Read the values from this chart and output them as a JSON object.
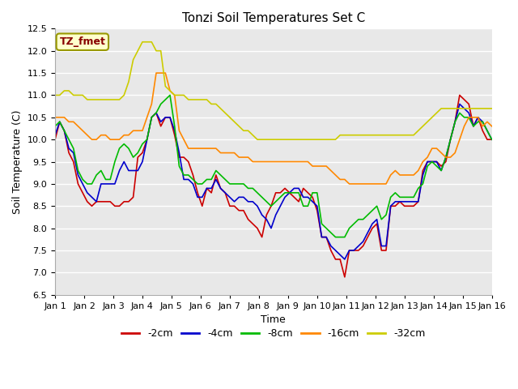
{
  "title": "Tonzi Soil Temperatures Set C",
  "xlabel": "Time",
  "ylabel": "Soil Temperature (C)",
  "annotation": "TZ_fmet",
  "ylim": [
    6.5,
    12.5
  ],
  "series": {
    "-2cm": {
      "color": "#cc0000",
      "linewidth": 1.2,
      "values": [
        10.0,
        10.4,
        10.2,
        9.7,
        9.5,
        9.0,
        8.8,
        8.6,
        8.5,
        8.6,
        8.6,
        8.6,
        8.6,
        8.5,
        8.5,
        8.6,
        8.6,
        8.7,
        9.6,
        9.7,
        10.0,
        10.5,
        10.6,
        10.3,
        10.5,
        10.5,
        10.1,
        9.6,
        9.6,
        9.5,
        9.2,
        8.8,
        8.5,
        8.9,
        8.8,
        9.2,
        8.9,
        8.8,
        8.5,
        8.5,
        8.4,
        8.4,
        8.2,
        8.1,
        8.0,
        7.8,
        8.3,
        8.5,
        8.8,
        8.8,
        8.9,
        8.8,
        8.7,
        8.6,
        8.9,
        8.8,
        8.7,
        8.4,
        7.8,
        7.8,
        7.5,
        7.3,
        7.3,
        6.9,
        7.5,
        7.5,
        7.5,
        7.6,
        7.8,
        8.0,
        8.1,
        7.5,
        7.5,
        8.5,
        8.5,
        8.6,
        8.5,
        8.5,
        8.5,
        8.6,
        9.3,
        9.5,
        9.5,
        9.5,
        9.4,
        9.5,
        10.0,
        10.4,
        11.0,
        10.9,
        10.8,
        10.3,
        10.5,
        10.2,
        10.0,
        10.0
      ]
    },
    "-4cm": {
      "color": "#0000cc",
      "linewidth": 1.2,
      "values": [
        10.1,
        10.4,
        10.2,
        9.8,
        9.7,
        9.2,
        9.0,
        8.8,
        8.7,
        8.6,
        9.0,
        9.0,
        9.0,
        9.0,
        9.3,
        9.5,
        9.3,
        9.3,
        9.3,
        9.5,
        10.0,
        10.5,
        10.6,
        10.4,
        10.5,
        10.5,
        10.2,
        9.7,
        9.1,
        9.1,
        9.0,
        8.7,
        8.7,
        8.9,
        8.9,
        9.1,
        8.9,
        8.8,
        8.7,
        8.6,
        8.7,
        8.7,
        8.6,
        8.6,
        8.5,
        8.3,
        8.2,
        8.0,
        8.3,
        8.5,
        8.7,
        8.8,
        8.9,
        8.9,
        8.7,
        8.7,
        8.6,
        8.5,
        7.8,
        7.8,
        7.6,
        7.5,
        7.4,
        7.3,
        7.5,
        7.5,
        7.6,
        7.7,
        7.9,
        8.1,
        8.2,
        7.6,
        7.6,
        8.5,
        8.6,
        8.6,
        8.6,
        8.6,
        8.6,
        8.6,
        9.2,
        9.5,
        9.5,
        9.5,
        9.3,
        9.6,
        10.0,
        10.4,
        10.8,
        10.7,
        10.6,
        10.3,
        10.5,
        10.4,
        10.2,
        10.0
      ]
    },
    "-8cm": {
      "color": "#00bb00",
      "linewidth": 1.2,
      "values": [
        10.3,
        10.4,
        10.2,
        10.0,
        9.8,
        9.3,
        9.1,
        9.0,
        9.0,
        9.2,
        9.3,
        9.1,
        9.1,
        9.5,
        9.8,
        9.9,
        9.8,
        9.6,
        9.7,
        9.9,
        10.0,
        10.5,
        10.6,
        10.8,
        10.9,
        11.0,
        10.3,
        9.4,
        9.2,
        9.2,
        9.1,
        9.0,
        9.0,
        9.1,
        9.1,
        9.3,
        9.2,
        9.1,
        9.0,
        9.0,
        9.0,
        9.0,
        8.9,
        8.9,
        8.8,
        8.7,
        8.6,
        8.5,
        8.6,
        8.7,
        8.8,
        8.8,
        8.8,
        8.8,
        8.5,
        8.5,
        8.8,
        8.8,
        8.1,
        8.0,
        7.9,
        7.8,
        7.8,
        7.8,
        8.0,
        8.1,
        8.2,
        8.2,
        8.3,
        8.4,
        8.5,
        8.2,
        8.3,
        8.7,
        8.8,
        8.7,
        8.7,
        8.7,
        8.7,
        8.9,
        9.0,
        9.4,
        9.5,
        9.4,
        9.3,
        9.6,
        10.0,
        10.4,
        10.6,
        10.5,
        10.5,
        10.3,
        10.4,
        10.4,
        10.2,
        10.0
      ]
    },
    "-16cm": {
      "color": "#ff8800",
      "linewidth": 1.2,
      "values": [
        10.5,
        10.5,
        10.5,
        10.4,
        10.4,
        10.3,
        10.2,
        10.1,
        10.0,
        10.0,
        10.1,
        10.1,
        10.0,
        10.0,
        10.0,
        10.1,
        10.1,
        10.2,
        10.2,
        10.2,
        10.5,
        10.8,
        11.5,
        11.5,
        11.5,
        11.1,
        11.0,
        10.2,
        10.0,
        9.8,
        9.8,
        9.8,
        9.8,
        9.8,
        9.8,
        9.8,
        9.7,
        9.7,
        9.7,
        9.7,
        9.6,
        9.6,
        9.6,
        9.5,
        9.5,
        9.5,
        9.5,
        9.5,
        9.5,
        9.5,
        9.5,
        9.5,
        9.5,
        9.5,
        9.5,
        9.5,
        9.4,
        9.4,
        9.4,
        9.4,
        9.3,
        9.2,
        9.1,
        9.1,
        9.0,
        9.0,
        9.0,
        9.0,
        9.0,
        9.0,
        9.0,
        9.0,
        9.0,
        9.2,
        9.3,
        9.2,
        9.2,
        9.2,
        9.2,
        9.3,
        9.5,
        9.6,
        9.8,
        9.8,
        9.7,
        9.6,
        9.6,
        9.7,
        10.0,
        10.3,
        10.5,
        10.5,
        10.5,
        10.3,
        10.4,
        10.3
      ]
    },
    "-32cm": {
      "color": "#cccc00",
      "linewidth": 1.2,
      "values": [
        11.0,
        11.0,
        11.1,
        11.1,
        11.0,
        11.0,
        11.0,
        10.9,
        10.9,
        10.9,
        10.9,
        10.9,
        10.9,
        10.9,
        10.9,
        11.0,
        11.3,
        11.8,
        12.0,
        12.2,
        12.2,
        12.2,
        12.0,
        12.0,
        11.2,
        11.1,
        11.0,
        11.0,
        11.0,
        10.9,
        10.9,
        10.9,
        10.9,
        10.9,
        10.8,
        10.8,
        10.7,
        10.6,
        10.5,
        10.4,
        10.3,
        10.2,
        10.2,
        10.1,
        10.0,
        10.0,
        10.0,
        10.0,
        10.0,
        10.0,
        10.0,
        10.0,
        10.0,
        10.0,
        10.0,
        10.0,
        10.0,
        10.0,
        10.0,
        10.0,
        10.0,
        10.0,
        10.1,
        10.1,
        10.1,
        10.1,
        10.1,
        10.1,
        10.1,
        10.1,
        10.1,
        10.1,
        10.1,
        10.1,
        10.1,
        10.1,
        10.1,
        10.1,
        10.1,
        10.2,
        10.3,
        10.4,
        10.5,
        10.6,
        10.7,
        10.7,
        10.7,
        10.7,
        10.7,
        10.7,
        10.7,
        10.7,
        10.7,
        10.7,
        10.7,
        10.7
      ]
    }
  },
  "tick_labels": [
    "Jan 1",
    "Jan 2",
    "Jan 3",
    "Jan 4",
    "Jan 5",
    "Jan 6",
    "Jan 7",
    "Jan 8",
    "Jan 9",
    "Jan 10",
    "Jan 11",
    "Jan 12",
    "Jan 13",
    "Jan 14",
    "Jan 15",
    "Jan 16"
  ],
  "fig_facecolor": "#ffffff",
  "plot_bg_color": "#e8e8e8",
  "grid_color": "#ffffff",
  "annotation_box_color": "#ffffcc",
  "annotation_text_color": "#880000",
  "annotation_border_color": "#999900",
  "title_fontsize": 11,
  "axis_label_fontsize": 9,
  "tick_fontsize": 8,
  "legend_fontsize": 9
}
